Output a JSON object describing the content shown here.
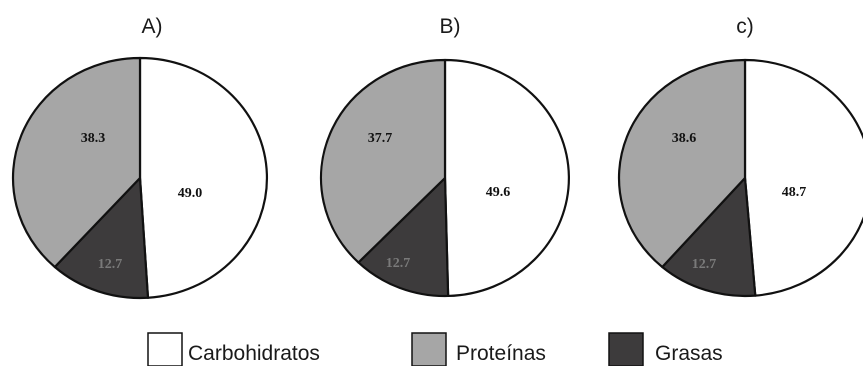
{
  "chart_data": [
    {
      "type": "pie",
      "title": "A)",
      "slices": [
        {
          "name": "Carbohidratos",
          "value": 49.0,
          "label": "49.0"
        },
        {
          "name": "Grasas",
          "value": 12.7,
          "label": "12.7"
        },
        {
          "name": "Proteínas",
          "value": 38.3,
          "label": "38.3"
        }
      ]
    },
    {
      "type": "pie",
      "title": "B)",
      "slices": [
        {
          "name": "Carbohidratos",
          "value": 49.6,
          "label": "49.6"
        },
        {
          "name": "Grasas",
          "value": 12.7,
          "label": "12.7"
        },
        {
          "name": "Proteínas",
          "value": 37.7,
          "label": "37.7"
        }
      ]
    },
    {
      "type": "pie",
      "title": "c)",
      "slices": [
        {
          "name": "Carbohidratos",
          "value": 48.7,
          "label": "48.7"
        },
        {
          "name": "Grasas",
          "value": 12.7,
          "label": "12.7"
        },
        {
          "name": "Proteínas",
          "value": 38.6,
          "label": "38.6"
        }
      ]
    }
  ],
  "legend": {
    "placement": "bottom",
    "items": [
      {
        "name": "Carbohidratos",
        "color": "#ffffff"
      },
      {
        "name": "Proteínas",
        "color": "#a6a6a6"
      },
      {
        "name": "Grasas",
        "color": "#3d3b3c"
      }
    ]
  },
  "colors": {
    "Carbohidratos": "#ffffff",
    "Proteínas": "#a6a6a6",
    "Grasas": "#3d3b3c",
    "outline": "#111111"
  }
}
